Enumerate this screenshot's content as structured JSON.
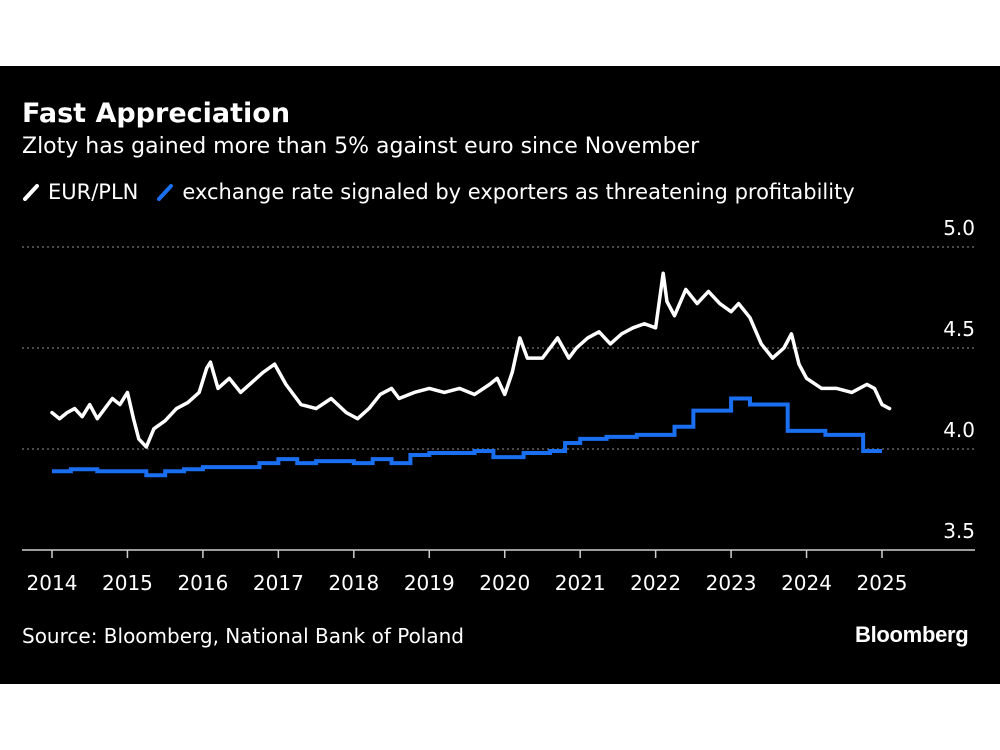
{
  "title": "Fast Appreciation",
  "subtitle": "Zloty has gained more than 5% against euro since November",
  "source": "Source: Bloomberg, National Bank of Poland",
  "brand": "Bloomberg",
  "colors": {
    "background": "#000000",
    "eurpln": "#ffffff",
    "threshold": "#1a6ef0",
    "grid": "#777777"
  },
  "chart_data": {
    "type": "line",
    "title": "Fast Appreciation",
    "subtitle": "Zloty has gained more than 5% against euro since November",
    "ylim": [
      3.5,
      5.0
    ],
    "yticks": [
      3.5,
      4.0,
      4.5,
      5.0
    ],
    "ytick_labels": [
      "3.5",
      "4.0",
      "4.5",
      "5.0"
    ],
    "xlim": [
      2014,
      2025.75
    ],
    "xticks": [
      2014,
      2015,
      2016,
      2017,
      2018,
      2019,
      2020,
      2021,
      2022,
      2023,
      2024,
      2025
    ],
    "xtick_labels": [
      "2014",
      "2015",
      "2016",
      "2017",
      "2018",
      "2019",
      "2020",
      "2021",
      "2022",
      "2023",
      "2024",
      "2025"
    ],
    "grid": "horizontal dotted",
    "y_axis_position": "right",
    "legend_position": "top-left",
    "series": [
      {
        "name": "EUR/PLN",
        "style": "line",
        "x": [
          2014.0,
          2014.1,
          2014.2,
          2014.3,
          2014.4,
          2014.5,
          2014.6,
          2014.7,
          2014.8,
          2014.9,
          2015.0,
          2015.08,
          2015.15,
          2015.25,
          2015.35,
          2015.5,
          2015.65,
          2015.8,
          2015.95,
          2016.05,
          2016.1,
          2016.2,
          2016.35,
          2016.5,
          2016.65,
          2016.8,
          2016.95,
          2017.1,
          2017.3,
          2017.5,
          2017.7,
          2017.9,
          2018.05,
          2018.2,
          2018.35,
          2018.5,
          2018.6,
          2018.8,
          2019.0,
          2019.2,
          2019.4,
          2019.6,
          2019.8,
          2019.9,
          2020.0,
          2020.1,
          2020.2,
          2020.3,
          2020.5,
          2020.7,
          2020.85,
          2020.95,
          2021.1,
          2021.25,
          2021.4,
          2021.55,
          2021.7,
          2021.85,
          2022.0,
          2022.1,
          2022.15,
          2022.25,
          2022.4,
          2022.55,
          2022.7,
          2022.85,
          2023.0,
          2023.1,
          2023.25,
          2023.4,
          2023.55,
          2023.7,
          2023.8,
          2023.9,
          2024.0,
          2024.2,
          2024.4,
          2024.6,
          2024.8,
          2024.9,
          2025.0,
          2025.1
        ],
        "y": [
          4.18,
          4.15,
          4.18,
          4.2,
          4.16,
          4.22,
          4.15,
          4.2,
          4.25,
          4.22,
          4.28,
          4.15,
          4.05,
          4.01,
          4.1,
          4.14,
          4.2,
          4.23,
          4.28,
          4.4,
          4.43,
          4.3,
          4.35,
          4.28,
          4.33,
          4.38,
          4.42,
          4.32,
          4.22,
          4.2,
          4.25,
          4.18,
          4.15,
          4.2,
          4.27,
          4.3,
          4.25,
          4.28,
          4.3,
          4.28,
          4.3,
          4.27,
          4.32,
          4.35,
          4.27,
          4.38,
          4.55,
          4.45,
          4.45,
          4.55,
          4.45,
          4.5,
          4.55,
          4.58,
          4.52,
          4.57,
          4.6,
          4.62,
          4.6,
          4.87,
          4.73,
          4.66,
          4.79,
          4.72,
          4.78,
          4.72,
          4.68,
          4.72,
          4.65,
          4.52,
          4.45,
          4.5,
          4.57,
          4.42,
          4.35,
          4.3,
          4.3,
          4.28,
          4.32,
          4.3,
          4.22,
          4.2
        ]
      },
      {
        "name": "exchange rate signaled by exporters as threatening profitability",
        "style": "step",
        "x": [
          2014.0,
          2014.25,
          2014.6,
          2014.9,
          2015.25,
          2015.5,
          2015.75,
          2016.0,
          2016.75,
          2017.0,
          2017.25,
          2017.5,
          2018.0,
          2018.25,
          2018.5,
          2018.75,
          2019.0,
          2019.25,
          2019.6,
          2019.85,
          2020.0,
          2020.25,
          2020.6,
          2020.8,
          2021.0,
          2021.35,
          2021.75,
          2022.0,
          2022.25,
          2022.5,
          2023.0,
          2023.25,
          2023.75,
          2024.25,
          2024.75,
          2025.0
        ],
        "y": [
          3.89,
          3.9,
          3.89,
          3.89,
          3.87,
          3.89,
          3.9,
          3.91,
          3.93,
          3.95,
          3.93,
          3.94,
          3.93,
          3.95,
          3.93,
          3.97,
          3.98,
          3.98,
          3.99,
          3.96,
          3.96,
          3.98,
          3.99,
          4.03,
          4.05,
          4.06,
          4.07,
          4.07,
          4.11,
          4.19,
          4.25,
          4.22,
          4.09,
          4.07,
          3.99,
          3.99
        ]
      }
    ]
  }
}
